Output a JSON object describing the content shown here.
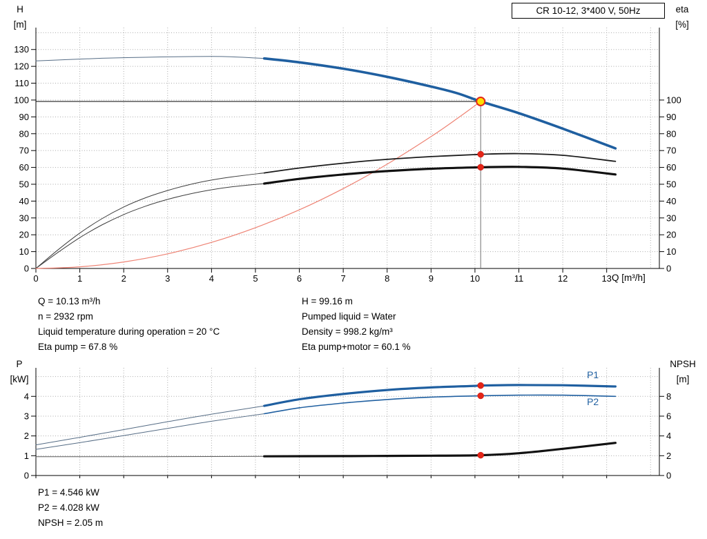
{
  "title_box": "CR 10-12, 3*400 V, 50Hz",
  "operating_point": {
    "left_lines": [
      "Q = 10.13 m³/h",
      "n = 2932 rpm",
      "Liquid temperature during operation = 20 °C",
      "Eta pump = 67.8 %"
    ],
    "right_lines": [
      "H = 99.16 m",
      "Pumped liquid = Water",
      "Density = 998.2 kg/m³",
      "Eta pump+motor = 60.1 %"
    ],
    "bottom_lines": [
      "P1 = 4.546 kW",
      "P2 = 4.028 kW",
      "NPSH = 2.05 m"
    ]
  },
  "chart_data": [
    {
      "type": "line",
      "title": "CR 10-12, 3*400 V, 50Hz",
      "x_axis": {
        "label": "Q [m³/h]",
        "min": 0,
        "max": 14.2,
        "labeled_ticks": [
          0,
          1,
          2,
          3,
          4,
          5,
          6,
          7,
          8,
          9,
          10,
          11,
          12,
          13
        ],
        "show_tick_labels": true
      },
      "y_left": {
        "name": "H",
        "unit": "[m]",
        "min": 0,
        "max": 143,
        "labeled_ticks": [
          0,
          10,
          20,
          30,
          40,
          50,
          60,
          70,
          80,
          90,
          100,
          110,
          120,
          130
        ]
      },
      "y_right": {
        "name": "eta",
        "unit": "[%]",
        "labeled_ticks": [
          0,
          10,
          20,
          30,
          40,
          50,
          60,
          70,
          80,
          90,
          100
        ],
        "scale_to_left": 1
      },
      "grid_x_step": 1,
      "grid_y_step": 10,
      "series": [
        {
          "name": "head-curve-preview",
          "axis": "left",
          "color": "#546b84",
          "width": 1,
          "points": [
            [
              0,
              123.2
            ],
            [
              0.7,
              124.0
            ],
            [
              1.5,
              124.8
            ],
            [
              2.5,
              125.4
            ],
            [
              3.5,
              125.8
            ],
            [
              4.3,
              125.8
            ],
            [
              5.2,
              124.7
            ]
          ]
        },
        {
          "name": "eta-pump-preview",
          "axis": "left",
          "color": "#3c3c3c",
          "width": 1,
          "points": [
            [
              0,
              0
            ],
            [
              0.5,
              11
            ],
            [
              1,
              21
            ],
            [
              1.5,
              29.5
            ],
            [
              2,
              36.5
            ],
            [
              2.5,
              42
            ],
            [
              3,
              46.3
            ],
            [
              3.5,
              49.8
            ],
            [
              4,
              52.5
            ],
            [
              4.5,
              54.5
            ],
            [
              5.2,
              56.7
            ]
          ]
        },
        {
          "name": "eta-pump-motor-preview",
          "axis": "left",
          "color": "#3c3c3c",
          "width": 1,
          "points": [
            [
              0,
              0
            ],
            [
              0.5,
              9.5
            ],
            [
              1,
              18.3
            ],
            [
              1.5,
              25.8
            ],
            [
              2,
              32
            ],
            [
              2.5,
              37
            ],
            [
              3,
              41
            ],
            [
              3.5,
              44.2
            ],
            [
              4,
              46.7
            ],
            [
              4.5,
              48.6
            ],
            [
              5.2,
              50.4
            ]
          ]
        },
        {
          "name": "system-curve",
          "axis": "left",
          "color": "#ee8273",
          "width": 1.2,
          "points": [
            [
              0,
              0
            ],
            [
              1,
              0.97
            ],
            [
              2,
              3.87
            ],
            [
              3,
              8.7
            ],
            [
              4,
              15.5
            ],
            [
              5,
              24.2
            ],
            [
              6,
              34.8
            ],
            [
              7,
              47.4
            ],
            [
              8,
              61.9
            ],
            [
              9,
              78.3
            ],
            [
              9.6,
              89.1
            ],
            [
              10.13,
              99.16
            ]
          ]
        },
        {
          "name": "head-curve",
          "axis": "left",
          "color": "#1f5fa0",
          "width": 3.6,
          "points": [
            [
              5.2,
              124.7
            ],
            [
              6,
              122.4
            ],
            [
              7,
              118.6
            ],
            [
              8,
              113.8
            ],
            [
              9,
              108
            ],
            [
              9.6,
              104
            ],
            [
              10.13,
              99.16
            ],
            [
              11,
              92.2
            ],
            [
              12,
              83
            ],
            [
              13.2,
              71.3
            ]
          ]
        },
        {
          "name": "eta-pump-curve",
          "axis": "left",
          "color": "#1a1a1a",
          "width": 1.8,
          "points": [
            [
              5.2,
              56.7
            ],
            [
              6,
              59.6
            ],
            [
              7,
              62.5
            ],
            [
              8,
              64.8
            ],
            [
              9,
              66.4
            ],
            [
              10,
              67.6
            ],
            [
              10.13,
              67.8
            ],
            [
              11,
              68.2
            ],
            [
              12,
              67.2
            ],
            [
              13.2,
              63.6
            ]
          ]
        },
        {
          "name": "eta-pump-motor-curve",
          "axis": "left",
          "color": "#111111",
          "width": 3.2,
          "points": [
            [
              5.2,
              50.4
            ],
            [
              6,
              53.2
            ],
            [
              7,
              55.8
            ],
            [
              8,
              57.8
            ],
            [
              9,
              59.2
            ],
            [
              10,
              60
            ],
            [
              10.13,
              60.1
            ],
            [
              11,
              60.3
            ],
            [
              12,
              59.3
            ],
            [
              13.2,
              55.8
            ]
          ]
        }
      ],
      "guides": [
        {
          "type": "h",
          "v": 99.16,
          "x1": 0,
          "x2": 10.13,
          "color": "#000000",
          "width": 1
        },
        {
          "type": "v",
          "x": 10.13,
          "v1": 0,
          "v2": 99.16,
          "color": "#707070",
          "width": 1
        }
      ],
      "markers": [
        {
          "name": "duty-point",
          "x": 10.13,
          "v": 99.16,
          "axis": "left",
          "r": 6,
          "fill": "#ffdf00",
          "stroke": "#e42618",
          "sw": 2
        },
        {
          "name": "eta-pump-point",
          "x": 10.13,
          "v": 67.8,
          "axis": "left",
          "r": 4.5,
          "fill": "#e42618",
          "stroke": "#c01010",
          "sw": 0.5
        },
        {
          "name": "eta-pump-motor-point",
          "x": 10.13,
          "v": 60.1,
          "axis": "left",
          "r": 4.5,
          "fill": "#e42618",
          "stroke": "#c01010",
          "sw": 0.5
        }
      ],
      "labels": []
    },
    {
      "type": "line",
      "title": "",
      "x_axis": {
        "label": "",
        "min": 0,
        "max": 14.2,
        "labeled_ticks": [
          0,
          1,
          2,
          3,
          4,
          5,
          6,
          7,
          8,
          9,
          10,
          11,
          12,
          13
        ],
        "show_tick_labels": false
      },
      "y_left": {
        "name": "P",
        "unit": "[kW]",
        "min": 0,
        "max": 5.44,
        "labeled_ticks": [
          0,
          1,
          2,
          3,
          4
        ]
      },
      "y_right": {
        "name": "NPSH",
        "unit": "[m]",
        "labeled_ticks": [
          0,
          2,
          4,
          6,
          8
        ],
        "scale_to_left": 0.5
      },
      "grid_x_step": 1,
      "grid_y_step": 1,
      "series": [
        {
          "name": "p1-preview",
          "axis": "left",
          "color": "#546b84",
          "width": 1,
          "points": [
            [
              0,
              1.55
            ],
            [
              1,
              1.93
            ],
            [
              2,
              2.32
            ],
            [
              3,
              2.72
            ],
            [
              4,
              3.1
            ],
            [
              5.2,
              3.52
            ]
          ]
        },
        {
          "name": "p2-preview",
          "axis": "left",
          "color": "#546b84",
          "width": 1,
          "points": [
            [
              0,
              1.32
            ],
            [
              1,
              1.66
            ],
            [
              2,
              2.02
            ],
            [
              3,
              2.38
            ],
            [
              4,
              2.74
            ],
            [
              5.2,
              3.12
            ]
          ]
        },
        {
          "name": "npsh-preview",
          "axis": "right",
          "color": "#5a5a5a",
          "width": 1,
          "points": [
            [
              0,
              1.9
            ],
            [
              2,
              1.9
            ],
            [
              4,
              1.92
            ],
            [
              5.2,
              1.94
            ]
          ]
        },
        {
          "name": "p1-curve",
          "axis": "left",
          "color": "#1f5fa0",
          "width": 3.2,
          "points": [
            [
              5.2,
              3.52
            ],
            [
              6,
              3.85
            ],
            [
              7,
              4.12
            ],
            [
              8,
              4.32
            ],
            [
              9,
              4.45
            ],
            [
              10,
              4.53
            ],
            [
              10.13,
              4.546
            ],
            [
              11,
              4.57
            ],
            [
              12,
              4.56
            ],
            [
              13.2,
              4.5
            ]
          ]
        },
        {
          "name": "p2-curve",
          "axis": "left",
          "color": "#1f5fa0",
          "width": 1.6,
          "points": [
            [
              5.2,
              3.12
            ],
            [
              6,
              3.42
            ],
            [
              7,
              3.66
            ],
            [
              8,
              3.84
            ],
            [
              9,
              3.96
            ],
            [
              10,
              4.02
            ],
            [
              10.13,
              4.028
            ],
            [
              11,
              4.06
            ],
            [
              12,
              4.06
            ],
            [
              13.2,
              4.0
            ]
          ]
        },
        {
          "name": "npsh-curve",
          "axis": "right",
          "color": "#111111",
          "width": 3.2,
          "points": [
            [
              5.2,
              1.94
            ],
            [
              7,
              1.96
            ],
            [
              8,
              1.98
            ],
            [
              9,
              2.0
            ],
            [
              10.13,
              2.05
            ],
            [
              11,
              2.25
            ],
            [
              12,
              2.7
            ],
            [
              13.2,
              3.3
            ]
          ]
        }
      ],
      "guides": [],
      "markers": [
        {
          "name": "p1-point",
          "x": 10.13,
          "v": 4.546,
          "axis": "left",
          "r": 4.5,
          "fill": "#e42618",
          "stroke": "#c01010",
          "sw": 0.5
        },
        {
          "name": "p2-point",
          "x": 10.13,
          "v": 4.028,
          "axis": "left",
          "r": 4.5,
          "fill": "#e42618",
          "stroke": "#c01010",
          "sw": 0.5
        },
        {
          "name": "npsh-point",
          "x": 10.13,
          "v": 2.05,
          "axis": "right",
          "r": 4.5,
          "fill": "#e42618",
          "stroke": "#c01010",
          "sw": 0.5
        }
      ],
      "labels": [
        {
          "text": "P1",
          "x": 12.55,
          "y": 4.92,
          "color": "#1f5fa0"
        },
        {
          "text": "P2",
          "x": 12.55,
          "y": 3.55,
          "color": "#1f5fa0"
        }
      ]
    }
  ]
}
